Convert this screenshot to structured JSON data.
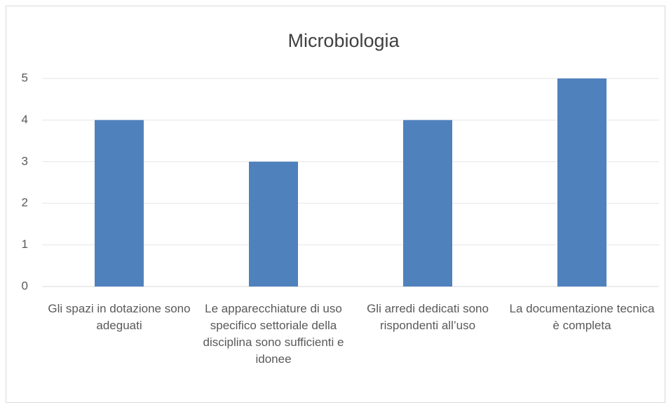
{
  "chart_data": {
    "type": "bar",
    "title": "Microbiologia",
    "categories": [
      "Gli spazi in dotazione sono adeguati",
      "Le apparecchiature di uso specifico settoriale della disciplina sono sufficienti e idonee",
      "Gli arredi dedicati sono rispondenti all’uso",
      "La documentazione tecnica è completa"
    ],
    "values": [
      4,
      3,
      4,
      5
    ],
    "color": "#4f81bd",
    "ylim": [
      0,
      5
    ],
    "yticks": [
      0,
      1,
      2,
      3,
      4,
      5
    ],
    "grid": true
  }
}
